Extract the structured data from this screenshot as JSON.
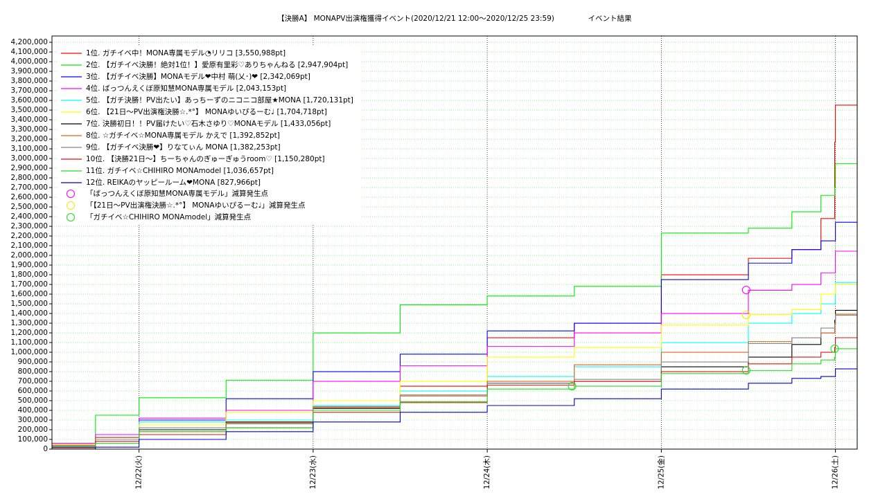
{
  "chart_data": {
    "type": "step-line",
    "title": "【決勝A】 MONAPV出演権獲得イベント(2020/12/21 12:00〜2020/12/25 23:59)",
    "subtitle": "イベント結果",
    "x": [
      0,
      6,
      12,
      24,
      36,
      48,
      60,
      72,
      84,
      96,
      102,
      106,
      107.9,
      108,
      111
    ],
    "xlim": [
      0,
      111
    ],
    "xticks": [
      {
        "value": 12,
        "label": "12/22(火)"
      },
      {
        "value": 36,
        "label": "12/23(水)"
      },
      {
        "value": 60,
        "label": "12/24(木)"
      },
      {
        "value": 84,
        "label": "12/25(金)"
      },
      {
        "value": 108,
        "label": "12/26(土)"
      }
    ],
    "ylim": [
      0,
      4265000
    ],
    "yticks": [
      0,
      {
        "value": 100000,
        "label": "100,000"
      },
      {
        "value": 200000,
        "label": "200,000"
      },
      {
        "value": 300000,
        "label": "300,000"
      },
      {
        "value": 400000,
        "label": "400,000"
      },
      {
        "value": 500000,
        "label": "500,000"
      },
      {
        "value": 600000,
        "label": "600,000"
      },
      {
        "value": 700000,
        "label": "700,000"
      },
      {
        "value": 800000,
        "label": "800,000"
      },
      {
        "value": 900000,
        "label": "900,000"
      },
      {
        "value": 1000000,
        "label": "1,000,000"
      },
      {
        "value": 1100000,
        "label": "1,100,000"
      },
      {
        "value": 1200000,
        "label": "1,200,000"
      },
      {
        "value": 1300000,
        "label": "1,300,000"
      },
      {
        "value": 1400000,
        "label": "1,400,000"
      },
      {
        "value": 1500000,
        "label": "1,500,000"
      },
      {
        "value": 1600000,
        "label": "1,600,000"
      },
      {
        "value": 1700000,
        "label": "1,700,000"
      },
      {
        "value": 1800000,
        "label": "1,800,000"
      },
      {
        "value": 1900000,
        "label": "1,900,000"
      },
      {
        "value": 2000000,
        "label": "2,000,000"
      },
      {
        "value": 2100000,
        "label": "2,100,000"
      },
      {
        "value": 2200000,
        "label": "2,200,000"
      },
      {
        "value": 2300000,
        "label": "2,300,000"
      },
      {
        "value": 2400000,
        "label": "2,400,000"
      },
      {
        "value": 2500000,
        "label": "2,500,000"
      },
      {
        "value": 2600000,
        "label": "2,600,000"
      },
      {
        "value": 2700000,
        "label": "2,700,000"
      },
      {
        "value": 2800000,
        "label": "2,800,000"
      },
      {
        "value": 2900000,
        "label": "2,900,000"
      },
      {
        "value": 3000000,
        "label": "3,000,000"
      },
      {
        "value": 3100000,
        "label": "3,100,000"
      },
      {
        "value": 3200000,
        "label": "3,200,000"
      },
      {
        "value": 3300000,
        "label": "3,300,000"
      },
      {
        "value": 3400000,
        "label": "3,400,000"
      },
      {
        "value": 3500000,
        "label": "3,500,000"
      },
      {
        "value": 3600000,
        "label": "3,600,000"
      },
      {
        "value": 3700000,
        "label": "3,700,000"
      },
      {
        "value": 3800000,
        "label": "3,800,000"
      },
      {
        "value": 3900000,
        "label": "3,900,000"
      },
      {
        "value": 4000000,
        "label": "4,000,000"
      },
      {
        "value": 4100000,
        "label": "4,100,000"
      },
      {
        "value": 4200000,
        "label": "4,200,000"
      }
    ],
    "grid": true,
    "legend": "upper-left",
    "series": [
      {
        "name": "1位. ガチイベ中！MONA専属モデル◔リリコ [3,550,988pt]",
        "color": "#ff0000",
        "values": [
          30000,
          100000,
          200000,
          300000,
          450000,
          650000,
          1150000,
          1300000,
          1800000,
          1970000,
          2060000,
          2380000,
          3170000,
          3550988,
          3550988
        ]
      },
      {
        "name": "2位. 【ガチイベ決勝！絶対1位！】愛原有里彩♡ありちゃんねる [2,947,904pt]",
        "color": "#00ee00",
        "values": [
          50000,
          350000,
          530000,
          710000,
          1200000,
          1490000,
          1580000,
          1680000,
          2230000,
          2280000,
          2450000,
          2620000,
          2700000,
          2947904,
          2947904
        ]
      },
      {
        "name": "3位. 【ガチイベ決勝】MONAモデル❤中村 萌(乂･)❤ [2,342,069pt]",
        "color": "#0000ff",
        "values": [
          20000,
          120000,
          300000,
          520000,
          800000,
          980000,
          1220000,
          1300000,
          1750000,
          1920000,
          2060000,
          2150000,
          2150000,
          2342069,
          2342069
        ]
      },
      {
        "name": "4位. ばっつんえくぼ原知慧MONA専属モデル [2,043,153pt]",
        "color": "#ff00ff",
        "values": [
          60000,
          150000,
          320000,
          400000,
          700000,
          860000,
          1060000,
          1200000,
          1400000,
          1640000,
          1700000,
          1820000,
          1820000,
          2043153,
          2043153
        ]
      },
      {
        "name": "5位. 【ガチ決勝！PV出たい】あっちーずのニコニコ部屋★MONA [1,720,131pt]",
        "color": "#00ffff",
        "values": [
          30000,
          100000,
          280000,
          300000,
          450000,
          600000,
          750000,
          850000,
          1100000,
          1300000,
          1400000,
          1500000,
          1500000,
          1720131,
          1720131
        ]
      },
      {
        "name": "6位. 【21日〜PV出演権決勝☆.*°】 MONAゆいぴるーむ♩ [1,704,718pt]",
        "color": "#ffff00",
        "values": [
          50000,
          100000,
          250000,
          380000,
          500000,
          700000,
          950000,
          1050000,
          1280000,
          1390000,
          1440000,
          1600000,
          1600000,
          1704718,
          1704718
        ]
      },
      {
        "name": "7位. 決勝初日！！PV届けたい♡石木さゆり♡MONAモデル [1,433,056pt]",
        "color": "#000000",
        "values": [
          20000,
          100000,
          200000,
          280000,
          420000,
          550000,
          680000,
          700000,
          850000,
          950000,
          1080000,
          1200000,
          1330000,
          1433056,
          1433056
        ]
      },
      {
        "name": "8位. ☆ガチイベ☆MONA専属モデル かえで [1,392,852pt]",
        "color": "#e0601a",
        "values": [
          40000,
          120000,
          180000,
          270000,
          430000,
          550000,
          700000,
          870000,
          1000000,
          1110000,
          1150000,
          1200000,
          1300000,
          1392852,
          1392852
        ]
      },
      {
        "name": "9位. 【ガチイベ決勝❤】りなてぃん MONA [1,382,253pt]",
        "color": "#888888",
        "values": [
          10000,
          100000,
          220000,
          260000,
          440000,
          560000,
          680000,
          720000,
          900000,
          1090000,
          1150000,
          1250000,
          1280000,
          1382253,
          1382253
        ]
      },
      {
        "name": "10位. 【決勝21日〜】ちーちゃんのぎゅーぎゅうroom♡ [1,150,280pt]",
        "color": "#dd1111",
        "values": [
          20000,
          80000,
          150000,
          220000,
          380000,
          480000,
          660000,
          700000,
          800000,
          880000,
          950000,
          1000000,
          1050000,
          1150280,
          1150280
        ]
      },
      {
        "name": "11位. ガチイベ☆CHIHIRO MONAmodel [1,036,657pt]",
        "color": "#22dd22",
        "values": [
          0,
          60000,
          180000,
          220000,
          400000,
          490000,
          620000,
          650000,
          780000,
          810000,
          880000,
          920000,
          950000,
          1036657,
          1036657
        ]
      },
      {
        "name": "12位. REIKAのヤッピールーム❤MONA [827,966pt]",
        "color": "#0000cc",
        "values": [
          0,
          20000,
          100000,
          180000,
          280000,
          380000,
          450000,
          520000,
          620000,
          680000,
          730000,
          750000,
          750000,
          827966,
          827966
        ]
      }
    ],
    "markers": [
      {
        "name": "「ばっつんえくぼ原知慧MONA専属モデル」減算発生点",
        "color": "#ff00ff",
        "x": [
          95.7
        ],
        "values": [
          1643000
        ]
      },
      {
        "name": "「【21日〜PV出演権決勝☆.*°】 MONAゆいぴるーむ♩」減算発生点",
        "color": "#eeee00",
        "x": [
          95.7
        ],
        "values": [
          1386000
        ]
      },
      {
        "name": "「ガチイベ☆CHIHIRO MONAmodel」減算発生点",
        "color": "#22dd22",
        "x": [
          71.7,
          95.7,
          107.9
        ],
        "values": [
          650000,
          814000,
          1036000
        ]
      }
    ]
  }
}
